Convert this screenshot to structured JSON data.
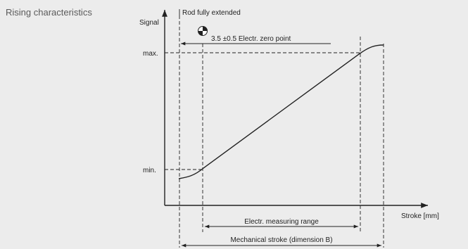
{
  "caption": "Rising characteristics",
  "axes": {
    "y_label": "Signal",
    "x_label": "Stroke [mm]"
  },
  "levels": {
    "max_label": "max.",
    "min_label": "min."
  },
  "annotations": {
    "rod_fully_extended": "Rod fully extended",
    "zero_point": "3.5 ±0.5 Electr. zero point"
  },
  "dimensions": {
    "measuring_range": "Electr. measuring range",
    "mechanical_stroke": "Mechanical stroke (dimension B)"
  },
  "colors": {
    "background": "#ececec",
    "line": "#222222",
    "caption_text": "#5a5a5a"
  }
}
